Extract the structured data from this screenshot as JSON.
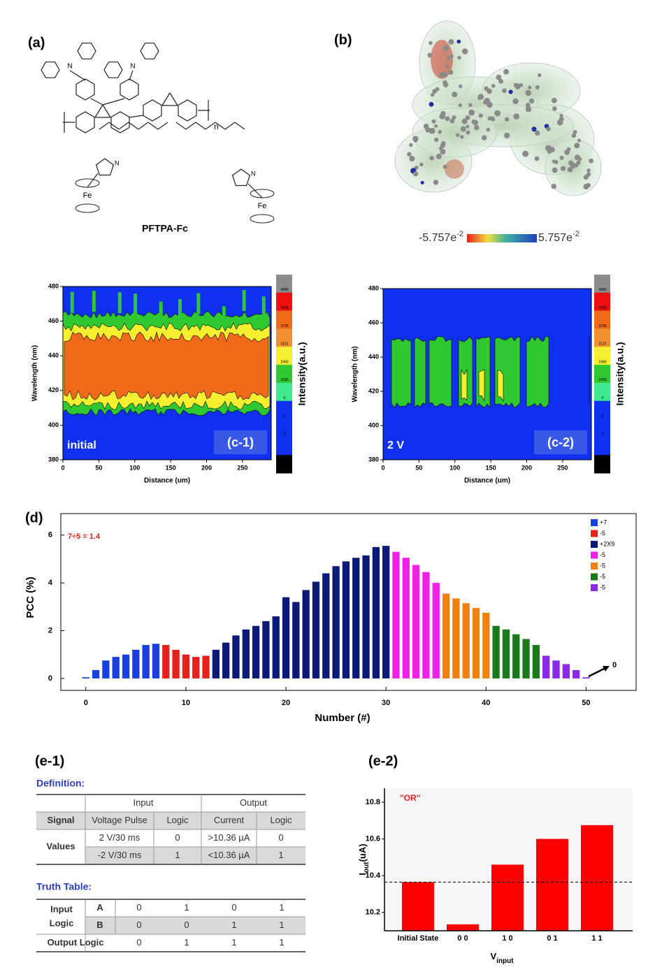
{
  "panel_a": {
    "label": "(a)",
    "name": "PFTPA-Fc",
    "n": "n",
    "nitrogen": "N",
    "iron": "Fe"
  },
  "panel_b": {
    "label": "(b)",
    "scale_min": {
      "base": "-5.757e",
      "exp": "-2"
    },
    "scale_max": {
      "base": "5.757e",
      "exp": "-2"
    }
  },
  "panel_c1": {
    "label": "(c-1)",
    "state": "initial",
    "x_label": "Distance (um)",
    "y_label": "Wavelength (nm)",
    "colorbar_label": "Intensity(a.u.)",
    "xlim": [
      0,
      290
    ],
    "ylim": [
      380,
      480
    ],
    "xticks": [
      0,
      50,
      100,
      150,
      200,
      250
    ],
    "yticks": [
      380,
      400,
      420,
      440,
      460,
      480
    ],
    "colorbar_ticks": [
      "4980",
      "4358",
      "3735",
      "3113",
      "2490",
      "2430",
      "0",
      "0",
      "0"
    ]
  },
  "panel_c2": {
    "label": "(c-2)",
    "state": "2 V",
    "x_label": "Distance (um)",
    "y_label": "Wavelength (nm)",
    "colorbar_label": "Intensity(a.u.)",
    "xlim": [
      0,
      290
    ],
    "ylim": [
      380,
      480
    ],
    "xticks": [
      0,
      50,
      100,
      150,
      200,
      250
    ],
    "yticks": [
      380,
      400,
      420,
      440,
      460,
      480
    ],
    "colorbar_ticks": [
      "4980",
      "4358",
      "3735",
      "3113",
      "2490",
      "2430",
      "0",
      "0",
      "0"
    ]
  },
  "chart_data": [
    {
      "type": "bar",
      "label": "(d)",
      "x_label": "Number (#)",
      "y_label": "PCC (%)",
      "annotation": "7÷5 = 1.4",
      "arrow_label": "0",
      "xlim": [
        -2.5,
        55
      ],
      "ylim": [
        -0.5,
        6.9
      ],
      "xticks": [
        0,
        10,
        20,
        30,
        40,
        50
      ],
      "yticks": [
        0,
        2,
        4,
        6
      ],
      "series": [
        {
          "name": "+7",
          "color": "#1a3fe0",
          "x": [
            0,
            1,
            2,
            3,
            4,
            5,
            6,
            7
          ],
          "values": [
            0.05,
            0.35,
            0.75,
            0.9,
            1.0,
            1.2,
            1.4,
            1.45
          ]
        },
        {
          "name": "-5",
          "color": "#e8201c",
          "x": [
            8,
            9,
            10,
            11,
            12
          ],
          "values": [
            1.4,
            1.2,
            1.0,
            0.9,
            0.95
          ]
        },
        {
          "name": "+2X9",
          "color": "#0b1a78",
          "x": [
            13,
            14,
            15,
            16,
            17,
            18,
            19,
            20,
            21,
            22,
            23,
            24,
            25,
            26,
            27,
            28,
            29,
            30
          ],
          "values": [
            1.2,
            1.5,
            1.8,
            2.05,
            2.2,
            2.4,
            2.6,
            3.4,
            3.2,
            3.7,
            4.05,
            4.4,
            4.7,
            4.9,
            5.05,
            5.15,
            5.5,
            5.55
          ]
        },
        {
          "name": "-5",
          "color": "#f020e8",
          "x": [
            31,
            32,
            33,
            34,
            35
          ],
          "values": [
            5.3,
            5.05,
            4.75,
            4.45,
            4.0
          ]
        },
        {
          "name": "-5",
          "color": "#f08010",
          "x": [
            36,
            37,
            38,
            39,
            40
          ],
          "values": [
            3.55,
            3.35,
            3.15,
            2.95,
            2.75
          ]
        },
        {
          "name": "-5",
          "color": "#1a7a1a",
          "x": [
            41,
            42,
            43,
            44,
            45
          ],
          "values": [
            2.2,
            2.05,
            1.85,
            1.65,
            1.4
          ]
        },
        {
          "name": "-5",
          "color": "#8a2ae8",
          "x": [
            46,
            47,
            48,
            49,
            50
          ],
          "values": [
            0.95,
            0.75,
            0.6,
            0.35,
            0.05
          ]
        }
      ]
    },
    {
      "type": "bar",
      "label": "(e-2)",
      "annotation": "\"OR\"",
      "color": "#ff0000",
      "y_label": {
        "base": "I",
        "sub": "out",
        "rest": "(uA)"
      },
      "x_label": {
        "base": "V",
        "sub": "input"
      },
      "categories": [
        "Initial State",
        "0 0",
        "1 0",
        "0 1",
        "1 1"
      ],
      "values": [
        10.365,
        10.135,
        10.46,
        10.6,
        10.675
      ],
      "threshold": 10.365,
      "ylim": [
        10.1,
        10.876
      ],
      "yticks": [
        10.2,
        10.4,
        10.6,
        10.8
      ]
    }
  ],
  "panel_e1": {
    "label": "(e-1)",
    "definition_title": "Definition:",
    "definition": {
      "header": [
        "Input",
        "Output"
      ],
      "subheader": [
        "Signal",
        "Voltage Pulse",
        "Logic",
        "Current",
        "Logic"
      ],
      "row_label": "Values",
      "rows": [
        [
          "2 V/30 ms",
          0,
          ">10.36 µA",
          0
        ],
        [
          "-2 V/30 ms",
          1,
          "<10.36 µA",
          1
        ]
      ]
    },
    "truth_title": "Truth Table:",
    "truth": {
      "input_label": [
        "Input",
        "Logic"
      ],
      "rows": [
        {
          "name": "A",
          "values": [
            0,
            1,
            0,
            1
          ]
        },
        {
          "name": "B",
          "values": [
            0,
            0,
            1,
            1
          ]
        }
      ],
      "output_label": "Output Logic",
      "output": [
        0,
        1,
        1,
        1
      ]
    }
  }
}
